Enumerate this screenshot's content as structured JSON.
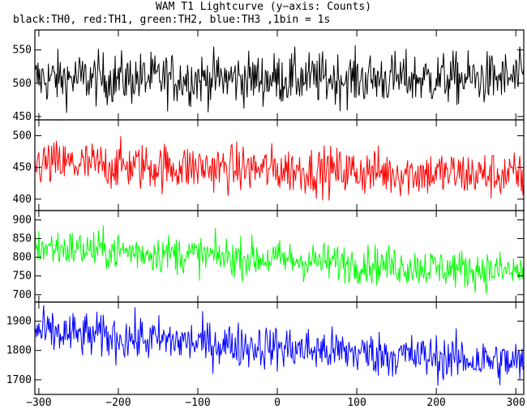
{
  "title": "WAM T1 Lightcurve (y−axis: Counts)",
  "subtitle": "black:TH0, red:TH1, green:TH2, blue:TH3 ,1bin = 1s",
  "chart_data": {
    "type": "line",
    "title": "WAM T1 Lightcurve (y−axis: Counts)",
    "subtitle": "black:TH0, red:TH1, green:TH2, blue:TH3 ,1bin = 1s",
    "ylabel": "Counts",
    "xlim": [
      -305,
      310
    ],
    "x_ticks": [
      -300,
      -200,
      -100,
      0,
      100,
      200,
      300
    ],
    "x_tick_labels": [
      "−300",
      "−200",
      "−100",
      "0",
      "100",
      "200",
      "300"
    ],
    "bin_seconds": 1,
    "grid": false,
    "panels": [
      {
        "name": "TH0",
        "color": "#000000",
        "ylim": [
          445,
          580
        ],
        "y_ticks": [
          450,
          500,
          550
        ],
        "y_tick_labels": [
          "450",
          "500",
          "550"
        ],
        "trend": [
          [
            -305,
            507
          ],
          [
            310,
            507
          ]
        ],
        "noise_sigma": 22
      },
      {
        "name": "TH1",
        "color": "#ff0000",
        "ylim": [
          382,
          525
        ],
        "y_ticks": [
          400,
          450,
          500
        ],
        "y_tick_labels": [
          "400",
          "450",
          "500"
        ],
        "trend": [
          [
            -305,
            456
          ],
          [
            310,
            437
          ]
        ],
        "noise_sigma": 21
      },
      {
        "name": "TH2",
        "color": "#00ff00",
        "ylim": [
          680,
          925
        ],
        "y_ticks": [
          700,
          750,
          800,
          850,
          900
        ],
        "y_tick_labels": [
          "700",
          "750",
          "800",
          "850",
          "900"
        ],
        "trend": [
          [
            -305,
            828
          ],
          [
            310,
            760
          ]
        ],
        "noise_sigma": 29
      },
      {
        "name": "TH3",
        "color": "#0000ff",
        "ylim": [
          1650,
          1965
        ],
        "y_ticks": [
          1700,
          1800,
          1900
        ],
        "y_tick_labels": [
          "1700",
          "1800",
          "1900"
        ],
        "trend": [
          [
            -305,
            1862
          ],
          [
            310,
            1757
          ]
        ],
        "noise_sigma": 43
      }
    ]
  }
}
